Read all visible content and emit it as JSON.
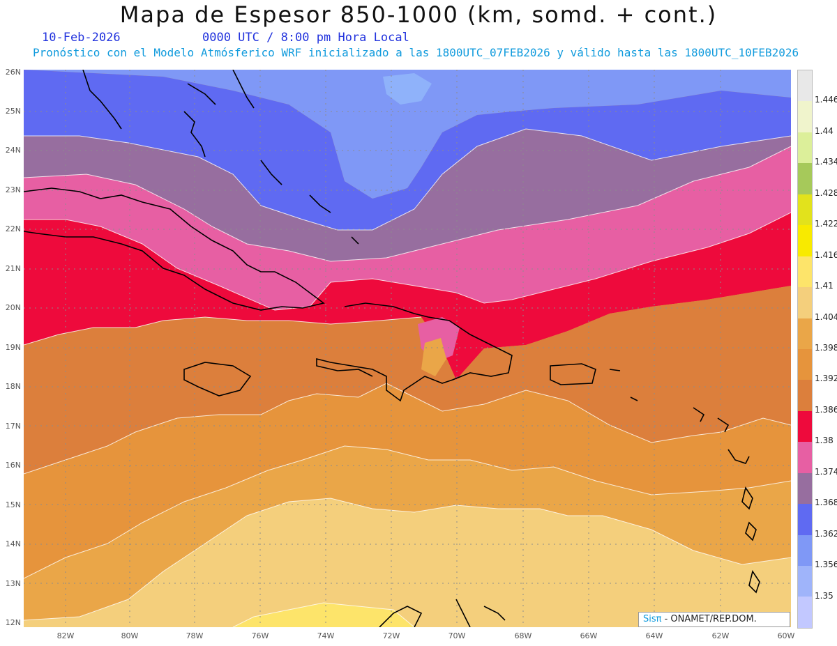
{
  "title": "Mapa de Espesor 850-1000 (km, somd. + cont.)",
  "date": "10-Feb-2026",
  "valid_time": "0000 UTC / 8:00 pm Hora Local",
  "description": "Pronóstico con el Modelo Atmósferico WRF inicializado a las 1800UTC_07FEB2026 y válido hasta las  1800UTC_10FEB2026",
  "credit": {
    "logo": "Sisπ",
    "text": " - ONAMET/REP.DOM."
  },
  "lat_labels": [
    "26N",
    "25N",
    "24N",
    "23N",
    "22N",
    "21N",
    "20N",
    "19N",
    "18N",
    "17N",
    "16N",
    "15N",
    "14N",
    "13N",
    "12N"
  ],
  "lon_labels": [
    "82W",
    "80W",
    "78W",
    "76W",
    "74W",
    "72W",
    "70W",
    "68W",
    "66W",
    "64W",
    "62W",
    "60W"
  ],
  "colorbar": {
    "labels": [
      "1.446",
      "1.44",
      "1.434",
      "1.428",
      "1.422",
      "1.416",
      "1.41",
      "1.404",
      "1.398",
      "1.392",
      "1.386",
      "1.38",
      "1.374",
      "1.368",
      "1.362",
      "1.356",
      "1.35"
    ],
    "colors": [
      "#e8e8e8",
      "#f0f4cc",
      "#dcef9a",
      "#a6c95a",
      "#e2e21c",
      "#f8ea00",
      "#fde46a",
      "#f4cf7c",
      "#eaa648",
      "#e6943c",
      "#dc7f3c",
      "#ee0a3c",
      "#e75fa3",
      "#976e9f",
      "#5f6af2",
      "#7f98f6",
      "#9fb4fa",
      "#c2c8ff"
    ]
  },
  "map_colors": {
    "b_1356": "#7f98f6",
    "b_1362": "#5f6af2",
    "b_1368": "#976e9f",
    "b_1374": "#e75fa3",
    "b_1380": "#ee0a3c",
    "b_1386": "#dc7f3c",
    "b_1392": "#e6943c",
    "b_1398": "#eaa648",
    "b_1404": "#f4cf7c",
    "b_1410": "#fde46a",
    "b_1350": "#8fb2fa"
  }
}
